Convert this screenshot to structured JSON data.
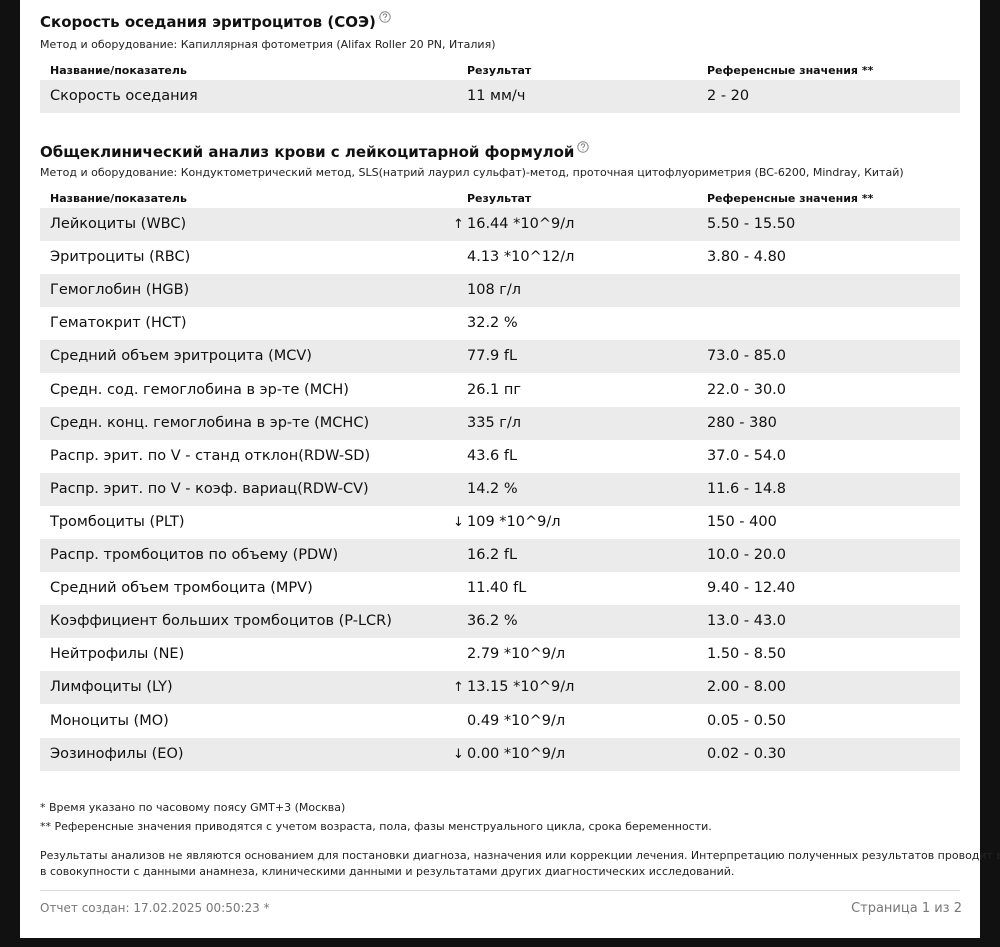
{
  "sections": [
    {
      "title": "Скорость оседания эритроцитов (СОЭ)",
      "method": "Метод и оборудование: Капиллярная фотометрия (Alifax Roller 20 PN, Италия)",
      "headers": [
        "Название/показатель",
        "Результат",
        "Референсные значения **"
      ],
      "rows": [
        {
          "name": "Скорость оседания",
          "result": "11 мм/ч",
          "ref": "2 - 20"
        }
      ]
    },
    {
      "title": "Общеклинический анализ крови с лейкоцитарной формулой",
      "method": "Метод и оборудование: Кондуктометрический метод, SLS(натрий лаурил сульфат)-метод, проточная цитофлуориметрия (BC-6200, Mindray, Китай)",
      "headers": [
        "Название/показатель",
        "Результат",
        "Референсные значения **"
      ],
      "rows": [
        {
          "name": "Лейкоциты (WBC)",
          "flag": "↑",
          "result": "16.44 *10^9/л",
          "ref": "5.50 - 15.50"
        },
        {
          "name": "Эритроциты (RBC)",
          "result": "4.13 *10^12/л",
          "ref": "3.80 - 4.80"
        },
        {
          "name": "Гемоглобин (HGB)",
          "result": "108 г/л"
        },
        {
          "name": "Гематокрит (HCT)",
          "result": "32.2 %"
        },
        {
          "name": "Средний объем эритроцита (MCV)",
          "result": "77.9 fL",
          "ref": "73.0 - 85.0"
        },
        {
          "name": "Средн. сод. гемоглобина в эр-те (MCH)",
          "result": "26.1 пг",
          "ref": "22.0 - 30.0"
        },
        {
          "name": "Средн. конц. гемоглобина в эр-те (MCHC)",
          "result": "335 г/л",
          "ref": "280 - 380"
        },
        {
          "name": "Распр. эрит. по V - станд отклон(RDW-SD)",
          "result": "43.6 fL",
          "ref": "37.0 - 54.0"
        },
        {
          "name": "Распр. эрит. по V - коэф. вариац(RDW-CV)",
          "result": "14.2 %",
          "ref": "11.6 - 14.8"
        },
        {
          "name": "Тромбоциты (PLT)",
          "flag": "↓",
          "result": "109 *10^9/л",
          "ref": "150 - 400"
        },
        {
          "name": "Распр. тромбоцитов по объему (PDW)",
          "result": "16.2 fL",
          "ref": "10.0 - 20.0"
        },
        {
          "name": "Средний объем тромбоцита (MPV)",
          "result": "11.40 fL",
          "ref": "9.40 - 12.40"
        },
        {
          "name": "Коэффициент больших тромбоцитов (P-LCR)",
          "result": "36.2 %",
          "ref": "13.0 - 43.0"
        },
        {
          "name": "Нейтрофилы (NE)",
          "result": "2.79 *10^9/л",
          "ref": "1.50 - 8.50"
        },
        {
          "name": "Лимфоциты (LY)",
          "flag": "↑",
          "result": "13.15 *10^9/л",
          "ref": "2.00 - 8.00"
        },
        {
          "name": "Моноциты (MO)",
          "result": "0.49 *10^9/л",
          "ref": "0.05 - 0.50"
        },
        {
          "name": "Эозинофилы (EO)",
          "flag": "↓",
          "result": "0.00 *10^9/л",
          "ref": "0.02 - 0.30"
        }
      ]
    }
  ],
  "footnotes": [
    "* Время указано по часовому поясу GMT+3 (Москва)",
    "** Референсные значения приводятся с учетом возраста, пола, фазы менструального цикла, срока беременности."
  ],
  "disclaimer": [
    "Результаты анализов не являются основанием для постановки диагноза, назначения или коррекции лечения. Интерпретацию полученных результатов проводит врач",
    "в совокупности с данными анамнеза, клиническими данными и результатами других диагностических исследований."
  ],
  "footer": {
    "created": "Отчет создан: 17.02.2025 00:50:23 *",
    "page": "Страница 1 из 2"
  }
}
